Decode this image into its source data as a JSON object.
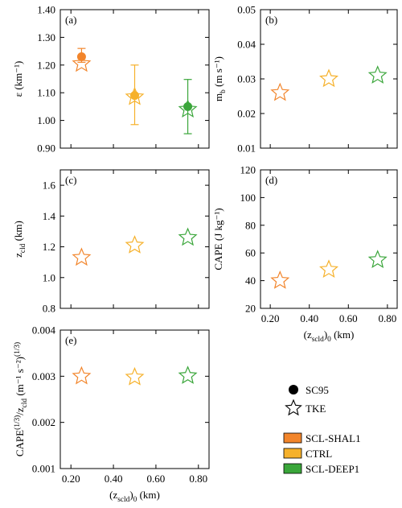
{
  "colors": {
    "SCL-SHAL1": "#f2852b",
    "CTRL": "#f6b12b",
    "SCL-DEEP1": "#3aa63a"
  },
  "chart_data": [
    {
      "type": "scatter",
      "panel_label": "(a)",
      "ylabel": "ε (km⁻¹)",
      "xlabel": "",
      "xlim": [
        0.15,
        0.85
      ],
      "ylim": [
        0.9,
        1.4
      ],
      "yticks": [
        0.9,
        1.0,
        1.1,
        1.2,
        1.3,
        1.4
      ],
      "ytick_labels": [
        "0.90",
        "1.00",
        "1.10",
        "1.20",
        "1.30",
        "1.40"
      ],
      "xticks": [
        0.2,
        0.4,
        0.6,
        0.8
      ],
      "xtick_labels": [],
      "series": [
        {
          "name": "SC95",
          "marker": "circle",
          "x": [
            0.25,
            0.5,
            0.75
          ],
          "y": [
            1.23,
            1.09,
            1.05
          ],
          "yerr_low": [
            1.21,
            0.985,
            0.952
          ],
          "yerr_high": [
            1.26,
            1.2,
            1.148
          ]
        },
        {
          "name": "TKE",
          "marker": "star",
          "x": [
            0.25,
            0.5,
            0.75
          ],
          "y": [
            1.205,
            1.085,
            1.04
          ]
        }
      ]
    },
    {
      "type": "scatter",
      "panel_label": "(b)",
      "ylabel": "m_b (m s⁻¹)",
      "xlabel": "",
      "xlim": [
        0.15,
        0.85
      ],
      "ylim": [
        0.01,
        0.05
      ],
      "yticks": [
        0.01,
        0.02,
        0.03,
        0.04,
        0.05
      ],
      "ytick_labels": [
        "0.01",
        "0.02",
        "0.03",
        "0.04",
        "0.05"
      ],
      "xticks": [
        0.2,
        0.4,
        0.6,
        0.8
      ],
      "xtick_labels": [],
      "series": [
        {
          "name": "TKE",
          "marker": "star",
          "x": [
            0.25,
            0.5,
            0.75
          ],
          "y": [
            0.026,
            0.03,
            0.031
          ]
        }
      ]
    },
    {
      "type": "scatter",
      "panel_label": "(c)",
      "ylabel": "z_cld (km)",
      "xlabel": "",
      "xlim": [
        0.15,
        0.85
      ],
      "ylim": [
        0.8,
        1.7
      ],
      "yticks": [
        0.8,
        1.0,
        1.2,
        1.4,
        1.6
      ],
      "ytick_labels": [
        "0.8",
        "1.0",
        "1.2",
        "1.4",
        "1.6"
      ],
      "xticks": [
        0.2,
        0.4,
        0.6,
        0.8
      ],
      "xtick_labels": [],
      "series": [
        {
          "name": "TKE",
          "marker": "star",
          "x": [
            0.25,
            0.5,
            0.75
          ],
          "y": [
            1.13,
            1.21,
            1.26
          ]
        }
      ]
    },
    {
      "type": "scatter",
      "panel_label": "(d)",
      "ylabel": "CAPE (J kg⁻¹)",
      "xlabel": "(z_scld)₀ (km)",
      "xlim": [
        0.15,
        0.85
      ],
      "ylim": [
        20,
        120
      ],
      "yticks": [
        20,
        40,
        60,
        80,
        100,
        120
      ],
      "ytick_labels": [
        "20",
        "40",
        "60",
        "80",
        "100",
        "120"
      ],
      "xticks": [
        0.2,
        0.4,
        0.6,
        0.8
      ],
      "xtick_labels": [
        "0.20",
        "0.40",
        "0.60",
        "0.80"
      ],
      "series": [
        {
          "name": "TKE",
          "marker": "star",
          "x": [
            0.25,
            0.5,
            0.75
          ],
          "y": [
            40,
            48,
            55
          ]
        }
      ]
    },
    {
      "type": "scatter",
      "panel_label": "(e)",
      "ylabel": "CAPE^(1/3)/z_cld (m⁻¹ s⁻²)^(1/3)",
      "xlabel": "(z_scld)₀ (km)",
      "xlim": [
        0.15,
        0.85
      ],
      "ylim": [
        0.001,
        0.004
      ],
      "yticks": [
        0.001,
        0.002,
        0.003,
        0.004
      ],
      "ytick_labels": [
        "0.001",
        "0.002",
        "0.003",
        "0.004"
      ],
      "xticks": [
        0.2,
        0.4,
        0.6,
        0.8
      ],
      "xtick_labels": [
        "0.20",
        "0.40",
        "0.60",
        "0.80"
      ],
      "series": [
        {
          "name": "TKE",
          "marker": "star",
          "x": [
            0.25,
            0.5,
            0.75
          ],
          "y": [
            0.003,
            0.00298,
            0.00301
          ]
        }
      ]
    }
  ],
  "legend": {
    "markers": [
      {
        "label": "SC95",
        "marker": "circle"
      },
      {
        "label": "TKE",
        "marker": "star"
      }
    ],
    "cases": [
      {
        "label": "SCL-SHAL1",
        "color": "#f2852b"
      },
      {
        "label": "CTRL",
        "color": "#f6b12b"
      },
      {
        "label": "SCL-DEEP1",
        "color": "#3aa63a"
      }
    ]
  }
}
